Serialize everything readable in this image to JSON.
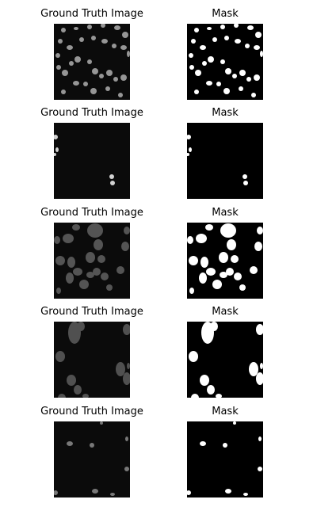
{
  "rows": [
    {
      "ground_truth_title": "Ground Truth Image",
      "mask_title": "Mask",
      "cells": [
        [
          12,
          8,
          3,
          3
        ],
        [
          28,
          6,
          3,
          2
        ],
        [
          45,
          4,
          3,
          3
        ],
        [
          62,
          2,
          3,
          3
        ],
        [
          80,
          5,
          4,
          3
        ],
        [
          90,
          14,
          4,
          4
        ],
        [
          8,
          22,
          3,
          3
        ],
        [
          20,
          30,
          4,
          3
        ],
        [
          35,
          20,
          3,
          3
        ],
        [
          50,
          18,
          3,
          3
        ],
        [
          64,
          22,
          4,
          3
        ],
        [
          76,
          28,
          3,
          3
        ],
        [
          88,
          30,
          4,
          3
        ],
        [
          30,
          45,
          4,
          4
        ],
        [
          45,
          48,
          3,
          3
        ],
        [
          6,
          55,
          3,
          3
        ],
        [
          14,
          62,
          4,
          4
        ],
        [
          52,
          60,
          4,
          4
        ],
        [
          60,
          66,
          3,
          3
        ],
        [
          70,
          62,
          4,
          4
        ],
        [
          78,
          70,
          3,
          3
        ],
        [
          88,
          68,
          4,
          4
        ],
        [
          28,
          75,
          4,
          3
        ],
        [
          40,
          76,
          3,
          3
        ],
        [
          50,
          85,
          4,
          4
        ],
        [
          68,
          82,
          3,
          3
        ],
        [
          12,
          86,
          3,
          3
        ],
        [
          84,
          90,
          3,
          3
        ],
        [
          5,
          40,
          3,
          3
        ],
        [
          22,
          50,
          3,
          3
        ],
        [
          94,
          38,
          2,
          4
        ]
      ],
      "image_brightness": 0.55
    },
    {
      "ground_truth_title": "Ground Truth Image",
      "mask_title": "Mask",
      "cells": [
        [
          2,
          18,
          3,
          3
        ],
        [
          4,
          34,
          2,
          3
        ],
        [
          1,
          40,
          2,
          2
        ],
        [
          73,
          68,
          3,
          3
        ],
        [
          74,
          76,
          3,
          3
        ]
      ],
      "image_brightness": 0.85
    },
    {
      "ground_truth_title": "Ground Truth Image",
      "mask_title": "Mask",
      "cells": [
        [
          52,
          10,
          10,
          9
        ],
        [
          28,
          6,
          5,
          4
        ],
        [
          18,
          20,
          7,
          6
        ],
        [
          4,
          22,
          4,
          5
        ],
        [
          92,
          10,
          4,
          5
        ],
        [
          90,
          30,
          5,
          6
        ],
        [
          56,
          28,
          6,
          7
        ],
        [
          46,
          44,
          6,
          7
        ],
        [
          60,
          46,
          5,
          5
        ],
        [
          64,
          68,
          5,
          5
        ],
        [
          54,
          62,
          5,
          5
        ],
        [
          22,
          50,
          5,
          7
        ],
        [
          8,
          48,
          6,
          6
        ],
        [
          20,
          70,
          5,
          7
        ],
        [
          38,
          78,
          6,
          6
        ],
        [
          46,
          66,
          5,
          4
        ],
        [
          70,
          82,
          4,
          4
        ],
        [
          84,
          60,
          5,
          5
        ],
        [
          6,
          86,
          3,
          4
        ],
        [
          30,
          62,
          6,
          5
        ]
      ],
      "image_brightness": 0.22
    },
    {
      "ground_truth_title": "Ground Truth Image",
      "mask_title": "Mask",
      "cells": [
        [
          26,
          14,
          8,
          14
        ],
        [
          34,
          6,
          5,
          6
        ],
        [
          92,
          10,
          5,
          7
        ],
        [
          8,
          44,
          6,
          7
        ],
        [
          84,
          60,
          6,
          9
        ],
        [
          92,
          72,
          5,
          8
        ],
        [
          22,
          74,
          6,
          7
        ],
        [
          30,
          86,
          5,
          6
        ],
        [
          40,
          94,
          4,
          3
        ],
        [
          10,
          96,
          5,
          5
        ],
        [
          94,
          56,
          2,
          4
        ]
      ],
      "image_brightness": 0.2
    },
    {
      "ground_truth_title": "Ground Truth Image",
      "mask_title": "Mask",
      "cells": [
        [
          20,
          28,
          4,
          3
        ],
        [
          48,
          30,
          3,
          3
        ],
        [
          60,
          2,
          2,
          2
        ],
        [
          92,
          22,
          2,
          3
        ],
        [
          92,
          60,
          3,
          3
        ],
        [
          2,
          90,
          3,
          3
        ],
        [
          52,
          88,
          4,
          3
        ],
        [
          74,
          92,
          3,
          2
        ]
      ],
      "image_brightness": 0.4
    }
  ]
}
